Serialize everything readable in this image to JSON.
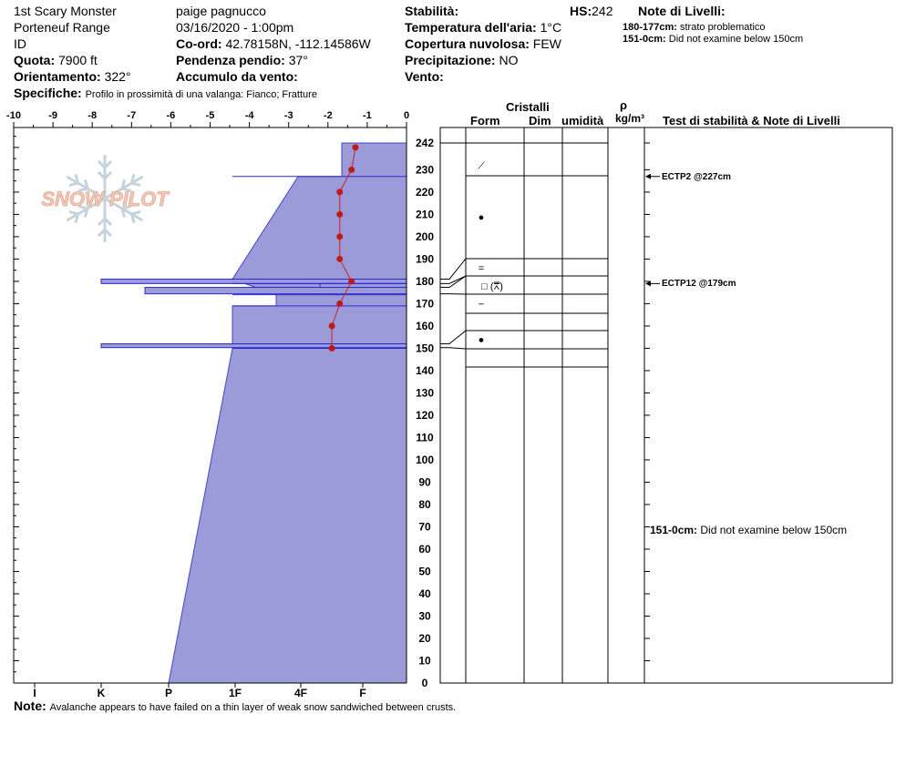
{
  "header": {
    "site": "1st Scary Monster",
    "range": "Porteneuf Range",
    "id": "ID",
    "elevation_label": "Quota:",
    "elevation": "7900 ft",
    "aspect_label": "Orientamento:",
    "aspect": "322°",
    "details_label": "Specifiche:",
    "details": "Profilo in prossimità di una valanga: Fianco; Fratture",
    "observer": "paige pagnucco",
    "datetime": "03/16/2020 - 1:00pm",
    "coords_label": "Co-ord:",
    "coords": "42.78158N, -112.14586W",
    "slope_label": "Pendenza pendio:",
    "slope": "37°",
    "wind_loading_label": "Accumulo da vento:",
    "wind_loading": "",
    "stability_label": "Stabilità:",
    "stability": "",
    "air_temp_label": "Temperatura dell'aria:",
    "air_temp": "1°C",
    "cloud_label": "Copertura nuvolosa:",
    "cloud": "FEW",
    "precip_label": "Precipitazione:",
    "precip": "NO",
    "wind_label": "Vento:",
    "wind": "",
    "hs_label": "HS:",
    "hs": "242",
    "layer_notes_label": "Note di Livelli:",
    "layer_notes": [
      {
        "range": "180-177cm:",
        "text": "strato problematico"
      },
      {
        "range": "151-0cm:",
        "text": "Did not examine below 150cm"
      }
    ]
  },
  "watermark": "SNOW PILOT",
  "columns": {
    "crystals": "Cristalli",
    "form": "Form",
    "size": "Dim",
    "moisture": "umidità",
    "rho": "ρ",
    "density_unit": "kg/m³",
    "tests": "Test di stabilità & Note di Livelli"
  },
  "tests": [
    {
      "label": "ECTP2 @227cm",
      "height": 227
    },
    {
      "label": "ECTP12 @179cm",
      "height": 179
    }
  ],
  "bottom_note_range": "151-0cm:",
  "bottom_note_text": "Did not examine below 150cm",
  "note_label": "Note:",
  "note": "Avalanche appears to have failed on a thin layer of weak snow sandwiched between crusts.",
  "chart_data": {
    "type": "area",
    "xlim": [
      -10,
      0
    ],
    "x_ticks": [
      "-10",
      "-9",
      "-8",
      "-7",
      "-6",
      "-5",
      "-4",
      "-3",
      "-2",
      "-1",
      "0"
    ],
    "ylim": [
      0,
      245
    ],
    "y_ticks": [
      242,
      230,
      220,
      210,
      200,
      190,
      180,
      170,
      160,
      150,
      140,
      130,
      120,
      110,
      100,
      90,
      80,
      70,
      60,
      50,
      40,
      30,
      20,
      10,
      0
    ],
    "hardness_labels": [
      "I",
      "K",
      "P",
      "1F",
      "4F",
      "F"
    ],
    "hardness_profile": [
      {
        "top": 242,
        "bottom": 227,
        "hardness": "F+"
      },
      {
        "top": 227,
        "bottom": 181,
        "hardness": "4F-1F"
      },
      {
        "top": 181,
        "bottom": 179,
        "hardness": "K+"
      },
      {
        "top": 179,
        "bottom": 177,
        "hardness": "4F"
      },
      {
        "top": 177,
        "bottom": 174,
        "hardness": "P-"
      },
      {
        "top": 174,
        "bottom": 169,
        "hardness": "4F-"
      },
      {
        "top": 169,
        "bottom": 152,
        "hardness": "1F+"
      },
      {
        "top": 152,
        "bottom": 150,
        "hardness": "K+"
      },
      {
        "top": 150,
        "bottom": 0,
        "hardness": "1F-P"
      }
    ],
    "temperature_profile": {
      "heights": [
        240,
        230,
        220,
        210,
        200,
        190,
        180,
        170,
        160,
        150
      ],
      "temps": [
        -1.3,
        -1.4,
        -1.7,
        -1.7,
        -1.7,
        -1.7,
        -1.4,
        -1.7,
        -1.9,
        -1.9
      ]
    },
    "layer_boundaries": [
      242,
      227,
      190,
      182,
      174,
      166,
      158,
      150,
      141
    ],
    "grain_forms": [
      {
        "height": 232,
        "symbol": "⟋"
      },
      {
        "height": 209,
        "symbol": "●"
      },
      {
        "height": 186,
        "symbol": "="
      },
      {
        "height": 178,
        "symbol": "□ (⩞)"
      },
      {
        "height": 170,
        "symbol": "−"
      },
      {
        "height": 154,
        "symbol": "●"
      }
    ]
  }
}
